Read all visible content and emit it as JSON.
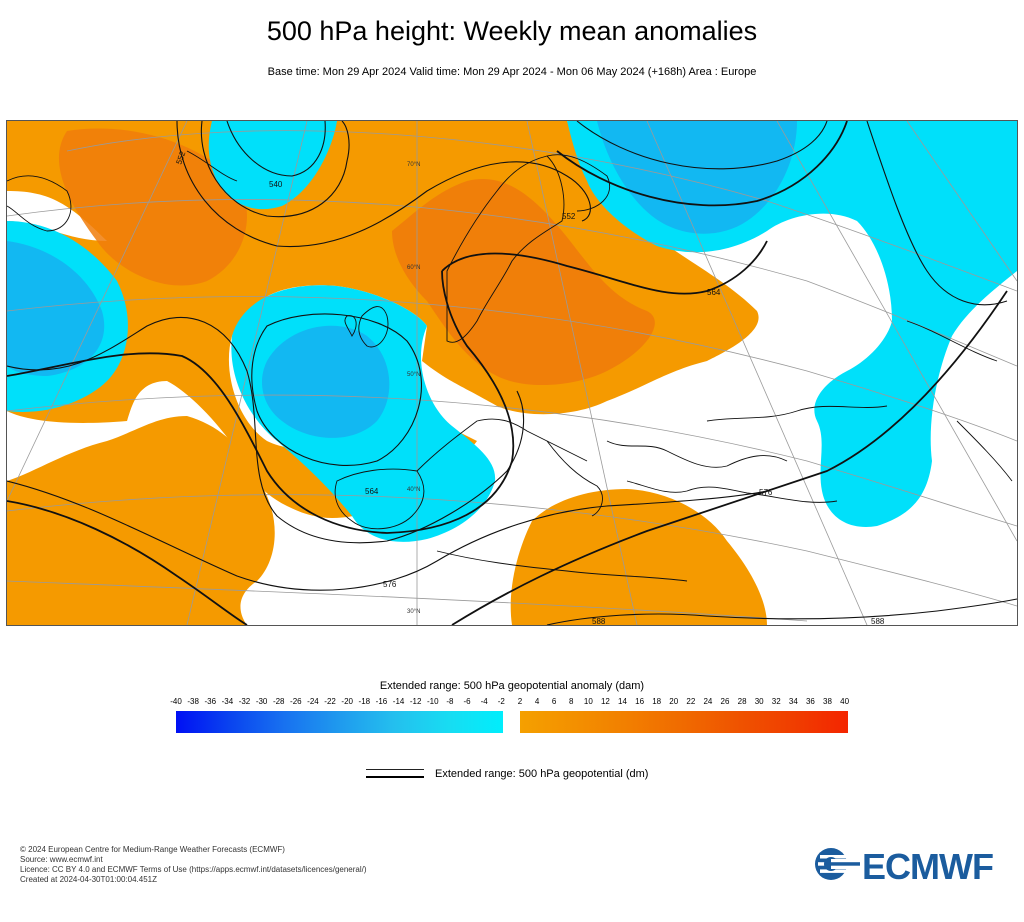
{
  "title": "500 hPa height: Weekly mean anomalies",
  "subtitle": "Base time: Mon 29 Apr 2024 Valid time: Mon 29 Apr 2024 - Mon 06 May 2024 (+168h) Area : Europe",
  "map": {
    "contour_labels": [
      "540",
      "552",
      "552",
      "564",
      "564",
      "576",
      "576",
      "588",
      "588"
    ],
    "latitude_labels": [
      "70°N",
      "60°N",
      "50°N",
      "40°N",
      "30°N"
    ],
    "colors": {
      "positive_anomaly": "#f59a00",
      "strong_positive_anomaly": "#f07c0a",
      "negative_anomaly": "#00e0fa",
      "strong_negative_anomaly": "#1aa6ee",
      "coastline": "#111111",
      "contour": "#111111",
      "graticule": "#9a9a9a"
    }
  },
  "legend": {
    "anomaly_title": "Extended range: 500 hPa geopotential anomaly (dam)",
    "ticks": [
      "-40",
      "-38",
      "-36",
      "-34",
      "-32",
      "-30",
      "-28",
      "-26",
      "-24",
      "-22",
      "-20",
      "-18",
      "-16",
      "-14",
      "-12",
      "-10",
      "-8",
      "-6",
      "-4",
      "-2",
      "2",
      "4",
      "6",
      "8",
      "10",
      "12",
      "14",
      "16",
      "18",
      "20",
      "22",
      "24",
      "26",
      "28",
      "30",
      "32",
      "34",
      "36",
      "38",
      "40"
    ],
    "line_label": "Extended range: 500 hPa geopotential (dm)"
  },
  "footer": {
    "copyright": "© 2024 European Centre for Medium-Range Weather Forecasts (ECMWF)",
    "source": "Source: www.ecmwf.int",
    "licence": "Licence: CC BY 4.0 and ECMWF Terms of Use (https://apps.ecmwf.int/datasets/licences/general/)",
    "created": "Created at 2024-04-30T01:00:04.451Z"
  },
  "logo": {
    "text": "ECMWF",
    "color": "#1b5c9e"
  }
}
